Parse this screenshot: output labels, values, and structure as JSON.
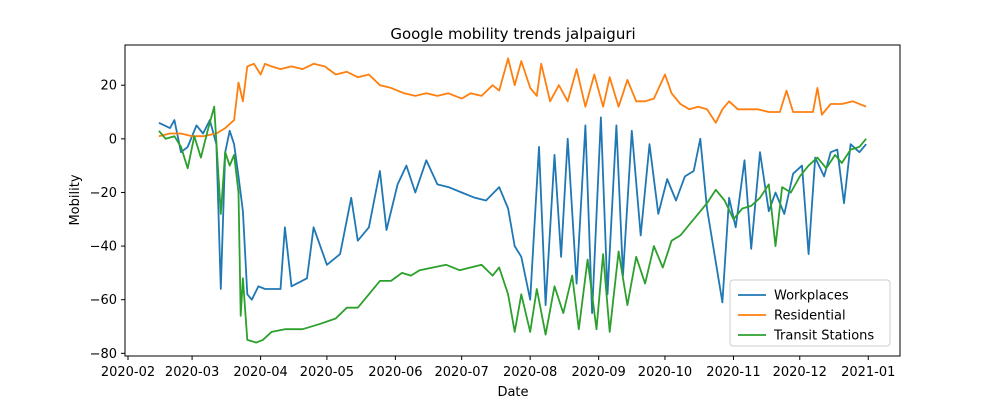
{
  "chart_data": {
    "type": "line",
    "title": "Google mobility trends jalpaiguri",
    "xlabel": "Date",
    "ylabel": "Mobility",
    "x_range": [
      "2020-02-15",
      "2020-12-31"
    ],
    "ylim": [
      -81,
      35
    ],
    "grid": false,
    "legend_position": "lower-right",
    "x_ticks": [
      "2020-02",
      "2020-03",
      "2020-04",
      "2020-05",
      "2020-06",
      "2020-07",
      "2020-08",
      "2020-09",
      "2020-10",
      "2020-11",
      "2020-12",
      "2021-01"
    ],
    "y_ticks": [
      -80,
      -60,
      -40,
      -20,
      0,
      20
    ],
    "series": [
      {
        "name": "Workplaces",
        "color": "#1f77b4",
        "points": [
          [
            "2020-02-15",
            6
          ],
          [
            "2020-02-20",
            4
          ],
          [
            "2020-02-22",
            7
          ],
          [
            "2020-02-25",
            -5
          ],
          [
            "2020-02-28",
            -3
          ],
          [
            "2020-03-03",
            5
          ],
          [
            "2020-03-06",
            2
          ],
          [
            "2020-03-09",
            7
          ],
          [
            "2020-03-12",
            -2
          ],
          [
            "2020-03-14",
            -56
          ],
          [
            "2020-03-16",
            -5
          ],
          [
            "2020-03-18",
            3
          ],
          [
            "2020-03-20",
            -2
          ],
          [
            "2020-03-22",
            -14
          ],
          [
            "2020-03-24",
            -27
          ],
          [
            "2020-03-26",
            -58
          ],
          [
            "2020-03-28",
            -60
          ],
          [
            "2020-03-31",
            -55
          ],
          [
            "2020-04-03",
            -56
          ],
          [
            "2020-04-10",
            -56
          ],
          [
            "2020-04-12",
            -33
          ],
          [
            "2020-04-15",
            -55
          ],
          [
            "2020-04-22",
            -52
          ],
          [
            "2020-04-25",
            -33
          ],
          [
            "2020-05-01",
            -47
          ],
          [
            "2020-05-07",
            -43
          ],
          [
            "2020-05-12",
            -22
          ],
          [
            "2020-05-15",
            -38
          ],
          [
            "2020-05-20",
            -33
          ],
          [
            "2020-05-25",
            -12
          ],
          [
            "2020-05-28",
            -34
          ],
          [
            "2020-06-02",
            -17
          ],
          [
            "2020-06-06",
            -10
          ],
          [
            "2020-06-10",
            -20
          ],
          [
            "2020-06-15",
            -8
          ],
          [
            "2020-06-20",
            -17
          ],
          [
            "2020-06-25",
            -18
          ],
          [
            "2020-07-01",
            -20
          ],
          [
            "2020-07-07",
            -22
          ],
          [
            "2020-07-12",
            -23
          ],
          [
            "2020-07-18",
            -18
          ],
          [
            "2020-07-22",
            -26
          ],
          [
            "2020-07-25",
            -40
          ],
          [
            "2020-07-28",
            -44
          ],
          [
            "2020-08-01",
            -60
          ],
          [
            "2020-08-05",
            -3
          ],
          [
            "2020-08-08",
            -62
          ],
          [
            "2020-08-12",
            -6
          ],
          [
            "2020-08-15",
            -44
          ],
          [
            "2020-08-18",
            0
          ],
          [
            "2020-08-22",
            -54
          ],
          [
            "2020-08-26",
            5
          ],
          [
            "2020-08-29",
            -65
          ],
          [
            "2020-09-02",
            8
          ],
          [
            "2020-09-05",
            -58
          ],
          [
            "2020-09-09",
            5
          ],
          [
            "2020-09-12",
            -51
          ],
          [
            "2020-09-16",
            3
          ],
          [
            "2020-09-20",
            -36
          ],
          [
            "2020-09-24",
            -2
          ],
          [
            "2020-09-28",
            -28
          ],
          [
            "2020-10-02",
            -15
          ],
          [
            "2020-10-06",
            -23
          ],
          [
            "2020-10-10",
            -14
          ],
          [
            "2020-10-14",
            -12
          ],
          [
            "2020-10-17",
            0
          ],
          [
            "2020-10-20",
            -26
          ],
          [
            "2020-10-24",
            -46
          ],
          [
            "2020-10-27",
            -61
          ],
          [
            "2020-10-30",
            -22
          ],
          [
            "2020-11-02",
            -33
          ],
          [
            "2020-11-06",
            -8
          ],
          [
            "2020-11-09",
            -41
          ],
          [
            "2020-11-13",
            -5
          ],
          [
            "2020-11-17",
            -27
          ],
          [
            "2020-11-20",
            -20
          ],
          [
            "2020-11-24",
            -28
          ],
          [
            "2020-11-28",
            -13
          ],
          [
            "2020-12-02",
            -10
          ],
          [
            "2020-12-05",
            -43
          ],
          [
            "2020-12-08",
            -7
          ],
          [
            "2020-12-12",
            -14
          ],
          [
            "2020-12-15",
            -5
          ],
          [
            "2020-12-18",
            -4
          ],
          [
            "2020-12-21",
            -24
          ],
          [
            "2020-12-24",
            -2
          ],
          [
            "2020-12-28",
            -5
          ],
          [
            "2020-12-31",
            -2
          ]
        ]
      },
      {
        "name": "Residential",
        "color": "#ff7f0e",
        "points": [
          [
            "2020-02-15",
            1
          ],
          [
            "2020-02-20",
            2
          ],
          [
            "2020-02-25",
            2
          ],
          [
            "2020-03-01",
            1
          ],
          [
            "2020-03-06",
            1
          ],
          [
            "2020-03-12",
            2
          ],
          [
            "2020-03-16",
            4
          ],
          [
            "2020-03-20",
            7
          ],
          [
            "2020-03-22",
            21
          ],
          [
            "2020-03-24",
            14
          ],
          [
            "2020-03-26",
            27
          ],
          [
            "2020-03-29",
            28
          ],
          [
            "2020-04-01",
            24
          ],
          [
            "2020-04-03",
            28
          ],
          [
            "2020-04-06",
            27
          ],
          [
            "2020-04-10",
            26
          ],
          [
            "2020-04-15",
            27
          ],
          [
            "2020-04-20",
            26
          ],
          [
            "2020-04-25",
            28
          ],
          [
            "2020-04-30",
            27
          ],
          [
            "2020-05-05",
            24
          ],
          [
            "2020-05-10",
            25
          ],
          [
            "2020-05-15",
            23
          ],
          [
            "2020-05-20",
            24
          ],
          [
            "2020-05-25",
            20
          ],
          [
            "2020-05-30",
            19
          ],
          [
            "2020-06-05",
            17
          ],
          [
            "2020-06-10",
            16
          ],
          [
            "2020-06-15",
            17
          ],
          [
            "2020-06-20",
            16
          ],
          [
            "2020-06-25",
            17
          ],
          [
            "2020-07-01",
            15
          ],
          [
            "2020-07-05",
            17
          ],
          [
            "2020-07-10",
            16
          ],
          [
            "2020-07-15",
            20
          ],
          [
            "2020-07-18",
            18
          ],
          [
            "2020-07-22",
            30
          ],
          [
            "2020-07-25",
            20
          ],
          [
            "2020-07-28",
            29
          ],
          [
            "2020-08-01",
            19
          ],
          [
            "2020-08-04",
            16
          ],
          [
            "2020-08-06",
            28
          ],
          [
            "2020-08-10",
            14
          ],
          [
            "2020-08-14",
            20
          ],
          [
            "2020-08-18",
            14
          ],
          [
            "2020-08-22",
            26
          ],
          [
            "2020-08-26",
            12
          ],
          [
            "2020-08-30",
            24
          ],
          [
            "2020-09-03",
            12
          ],
          [
            "2020-09-06",
            23
          ],
          [
            "2020-09-10",
            12
          ],
          [
            "2020-09-14",
            22
          ],
          [
            "2020-09-18",
            14
          ],
          [
            "2020-09-22",
            14
          ],
          [
            "2020-09-26",
            15
          ],
          [
            "2020-10-01",
            24
          ],
          [
            "2020-10-04",
            17
          ],
          [
            "2020-10-08",
            13
          ],
          [
            "2020-10-12",
            11
          ],
          [
            "2020-10-16",
            12
          ],
          [
            "2020-10-20",
            11
          ],
          [
            "2020-10-24",
            6
          ],
          [
            "2020-10-27",
            11
          ],
          [
            "2020-10-30",
            14
          ],
          [
            "2020-11-03",
            11
          ],
          [
            "2020-11-08",
            11
          ],
          [
            "2020-11-12",
            11
          ],
          [
            "2020-11-17",
            10
          ],
          [
            "2020-11-22",
            10
          ],
          [
            "2020-11-25",
            18
          ],
          [
            "2020-11-28",
            10
          ],
          [
            "2020-12-03",
            10
          ],
          [
            "2020-12-07",
            10
          ],
          [
            "2020-12-09",
            19
          ],
          [
            "2020-12-11",
            9
          ],
          [
            "2020-12-15",
            13
          ],
          [
            "2020-12-20",
            13
          ],
          [
            "2020-12-25",
            14
          ],
          [
            "2020-12-31",
            12
          ]
        ]
      },
      {
        "name": "Transit Stations",
        "color": "#2ca02c",
        "points": [
          [
            "2020-02-15",
            3
          ],
          [
            "2020-02-18",
            0
          ],
          [
            "2020-02-22",
            1
          ],
          [
            "2020-02-25",
            -3
          ],
          [
            "2020-02-28",
            -11
          ],
          [
            "2020-03-02",
            1
          ],
          [
            "2020-03-05",
            -7
          ],
          [
            "2020-03-08",
            3
          ],
          [
            "2020-03-11",
            12
          ],
          [
            "2020-03-14",
            -28
          ],
          [
            "2020-03-16",
            -5
          ],
          [
            "2020-03-18",
            -10
          ],
          [
            "2020-03-20",
            -6
          ],
          [
            "2020-03-22",
            -20
          ],
          [
            "2020-03-23",
            -66
          ],
          [
            "2020-03-24",
            -52
          ],
          [
            "2020-03-26",
            -75
          ],
          [
            "2020-03-30",
            -76
          ],
          [
            "2020-04-02",
            -75
          ],
          [
            "2020-04-06",
            -72
          ],
          [
            "2020-04-12",
            -71
          ],
          [
            "2020-04-20",
            -71
          ],
          [
            "2020-04-28",
            -69
          ],
          [
            "2020-05-05",
            -67
          ],
          [
            "2020-05-10",
            -63
          ],
          [
            "2020-05-15",
            -63
          ],
          [
            "2020-05-20",
            -58
          ],
          [
            "2020-05-25",
            -53
          ],
          [
            "2020-05-30",
            -53
          ],
          [
            "2020-06-04",
            -50
          ],
          [
            "2020-06-08",
            -51
          ],
          [
            "2020-06-12",
            -49
          ],
          [
            "2020-06-18",
            -48
          ],
          [
            "2020-06-24",
            -47
          ],
          [
            "2020-06-30",
            -49
          ],
          [
            "2020-07-05",
            -48
          ],
          [
            "2020-07-10",
            -47
          ],
          [
            "2020-07-15",
            -51
          ],
          [
            "2020-07-18",
            -48
          ],
          [
            "2020-07-22",
            -58
          ],
          [
            "2020-07-25",
            -72
          ],
          [
            "2020-07-28",
            -58
          ],
          [
            "2020-08-01",
            -72
          ],
          [
            "2020-08-04",
            -56
          ],
          [
            "2020-08-08",
            -73
          ],
          [
            "2020-08-12",
            -55
          ],
          [
            "2020-08-16",
            -65
          ],
          [
            "2020-08-20",
            -51
          ],
          [
            "2020-08-23",
            -71
          ],
          [
            "2020-08-27",
            -45
          ],
          [
            "2020-08-31",
            -71
          ],
          [
            "2020-09-03",
            -43
          ],
          [
            "2020-09-06",
            -72
          ],
          [
            "2020-09-10",
            -42
          ],
          [
            "2020-09-14",
            -62
          ],
          [
            "2020-09-18",
            -44
          ],
          [
            "2020-09-22",
            -54
          ],
          [
            "2020-09-26",
            -40
          ],
          [
            "2020-09-30",
            -48
          ],
          [
            "2020-10-04",
            -38
          ],
          [
            "2020-10-08",
            -36
          ],
          [
            "2020-10-12",
            -32
          ],
          [
            "2020-10-16",
            -28
          ],
          [
            "2020-10-20",
            -24
          ],
          [
            "2020-10-24",
            -19
          ],
          [
            "2020-10-28",
            -23
          ],
          [
            "2020-11-01",
            -30
          ],
          [
            "2020-11-05",
            -26
          ],
          [
            "2020-11-09",
            -25
          ],
          [
            "2020-11-13",
            -22
          ],
          [
            "2020-11-17",
            -17
          ],
          [
            "2020-11-20",
            -40
          ],
          [
            "2020-11-23",
            -18
          ],
          [
            "2020-11-27",
            -20
          ],
          [
            "2020-12-01",
            -14
          ],
          [
            "2020-12-05",
            -10
          ],
          [
            "2020-12-09",
            -7
          ],
          [
            "2020-12-13",
            -11
          ],
          [
            "2020-12-17",
            -6
          ],
          [
            "2020-12-20",
            -9
          ],
          [
            "2020-12-24",
            -4
          ],
          [
            "2020-12-28",
            -3
          ],
          [
            "2020-12-31",
            0
          ]
        ]
      }
    ]
  }
}
